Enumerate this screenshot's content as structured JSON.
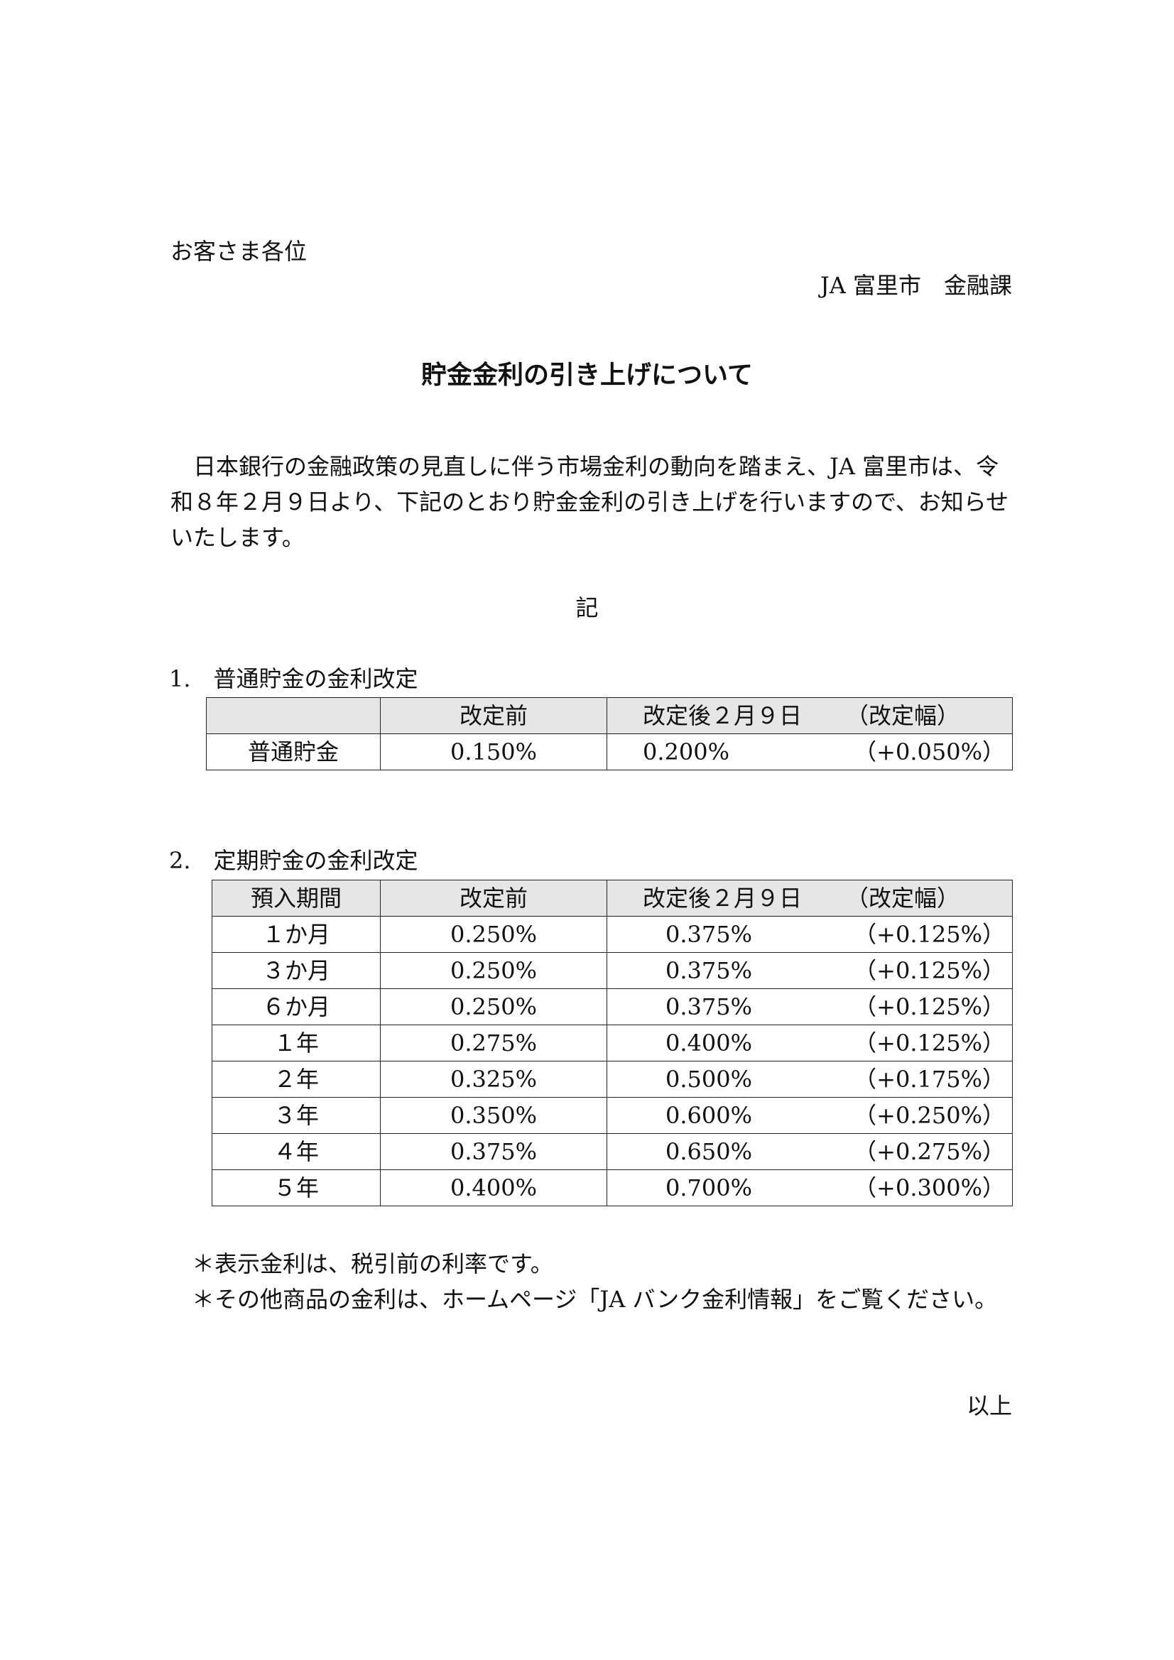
{
  "recipient": "お客さま各位",
  "sender": "JA 富里市　金融課",
  "title": "貯金金利の引き上げについて",
  "body": [
    "日本銀行の金融政策の見直しに伴う市場金利の動向を踏まえ、JA 富里市は、令和８年２月９日より、下記のとおり貯金金利の引き上げを行いますので、お知らせいたします。"
  ],
  "ki": "記",
  "section1": {
    "heading": "1.　普通貯金の金利改定",
    "headers": [
      "",
      "改定前",
      "改定後２月９日",
      "（改定幅）"
    ],
    "rows": [
      [
        "普通貯金",
        "0.150%",
        "0.200%",
        "（+0.050%）"
      ]
    ]
  },
  "section2": {
    "heading": "2.　定期貯金の金利改定",
    "headers": [
      "預入期間",
      "改定前",
      "改定後２月９日",
      "（改定幅）"
    ],
    "rows": [
      [
        "１か月",
        "0.250%",
        "0.375%",
        "（+0.125%）"
      ],
      [
        "３か月",
        "0.250%",
        "0.375%",
        "（+0.125%）"
      ],
      [
        "６か月",
        "0.250%",
        "0.375%",
        "（+0.125%）"
      ],
      [
        "１年",
        "0.275%",
        "0.400%",
        "（+0.125%）"
      ],
      [
        "２年",
        "0.325%",
        "0.500%",
        "（+0.175%）"
      ],
      [
        "３年",
        "0.350%",
        "0.600%",
        "（+0.250%）"
      ],
      [
        "４年",
        "0.375%",
        "0.650%",
        "（+0.275%）"
      ],
      [
        "５年",
        "0.400%",
        "0.700%",
        "（+0.300%）"
      ]
    ]
  },
  "notes": [
    "＊表示金利は、税引前の利率です。",
    "＊その他商品の金利は、ホームページ「JA バンク金利情報」をご覧ください。"
  ],
  "closing": "以上"
}
